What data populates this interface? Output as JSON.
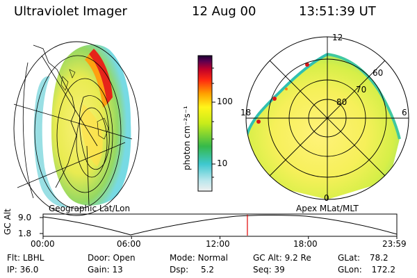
{
  "header": {
    "instrument": "Ultraviolet Imager",
    "date": "12 Aug 00",
    "time": "13:51:39 UT"
  },
  "geo_panel": {
    "title": "Geographic Lat/Lon"
  },
  "polar_panel": {
    "title": "Apex MLat/MLT",
    "mlt_labels": [
      "12",
      "18",
      "6",
      "0"
    ],
    "mlat_labels": [
      "60",
      "70",
      "80"
    ]
  },
  "colorbar": {
    "label": "photon cm⁻²s⁻¹",
    "ticks": [
      "100",
      "10"
    ]
  },
  "timeline": {
    "axis_label": "GC Alt",
    "y_ticks": [
      "9.0",
      "1.8"
    ],
    "x_ticks": [
      "00:00",
      "06:00",
      "12:00",
      "18:00",
      "23:59"
    ],
    "current_time_hours": 13.86
  },
  "info": {
    "flt_label": "Flt:",
    "flt_value": "LBHL",
    "ip_label": "IP:",
    "ip_value": "36.0",
    "door_label": "Door:",
    "door_value": "Open",
    "gain_label": "Gain:",
    "gain_value": "13",
    "mode_label": "Mode:",
    "mode_value": "Normal",
    "dsp_label": "Dsp:",
    "dsp_value": "5.2",
    "gcalt_label": "GC Alt:",
    "gcalt_value": "9.2 Re",
    "seq_label": "Seq:",
    "seq_value": "39",
    "glat_label": "GLat:",
    "glat_value": "78.2",
    "glon_label": "GLon:",
    "glon_value": "172.2"
  },
  "colors": {
    "marker": "#e00000",
    "line": "#000000"
  }
}
